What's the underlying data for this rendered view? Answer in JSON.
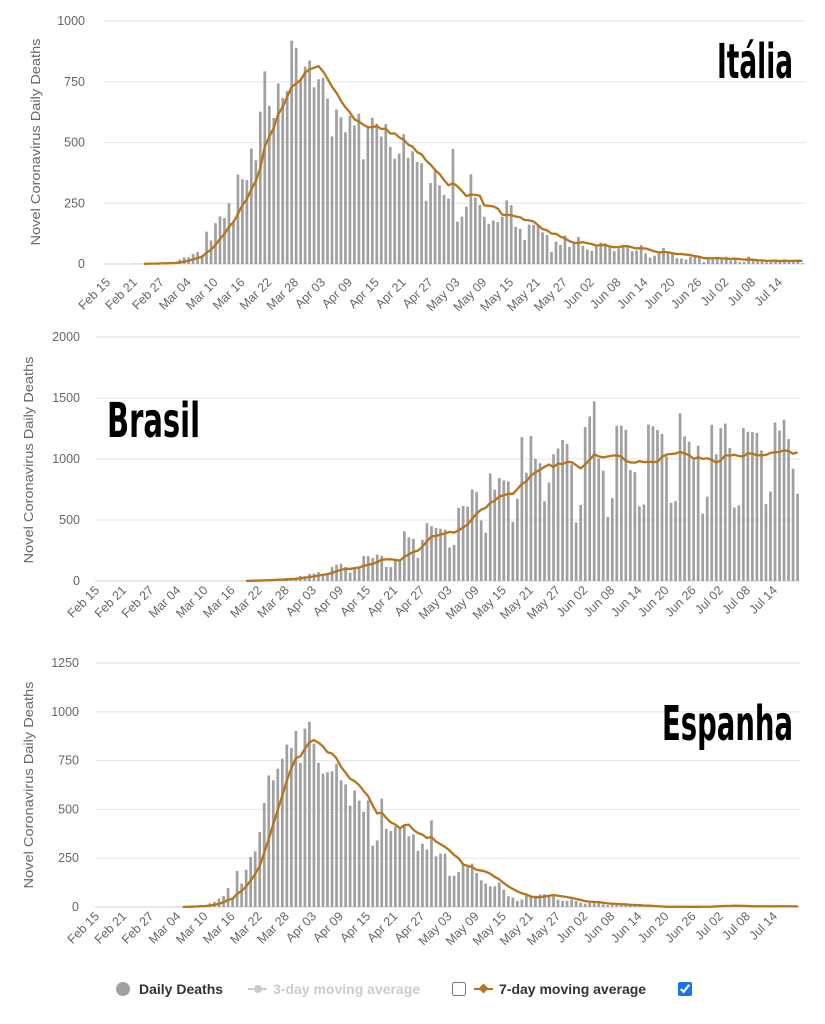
{
  "chart_data": [
    {
      "type": "bar",
      "title": "Itália",
      "xlabel": "",
      "ylabel": "Novel Coronavirus Daily Deaths",
      "ylim": [
        0,
        1000
      ],
      "y_ticks": [
        0,
        250,
        500,
        750,
        1000
      ],
      "grid": true,
      "x_start": "Feb 15",
      "x_tick_labels": [
        "Feb 15",
        "Feb 21",
        "Feb 27",
        "Mar 04",
        "Mar 10",
        "Mar 16",
        "Mar 22",
        "Mar 28",
        "Apr 03",
        "Apr 09",
        "Apr 15",
        "Apr 21",
        "Apr 27",
        "May 03",
        "May 09",
        "May 15",
        "May 21",
        "May 27",
        "Jun 02",
        "Jun 08",
        "Jun 14",
        "Jun 20",
        "Jun 26",
        "Jul 02",
        "Jul 08",
        "Jul 14"
      ],
      "colors": {
        "bar": "#a0a0a0",
        "line": "#b8741a",
        "grid": "#e6e6e6",
        "axis": "#ccd6eb"
      },
      "series": [
        {
          "name": "Daily Deaths",
          "type": "bar",
          "values": [
            0,
            0,
            0,
            0,
            0,
            0,
            1,
            1,
            1,
            4,
            3,
            2,
            5,
            4,
            8,
            5,
            18,
            27,
            28,
            41,
            49,
            36,
            133,
            97,
            168,
            196,
            189,
            250,
            175,
            368,
            349,
            345,
            475,
            427,
            627,
            793,
            651,
            601,
            743,
            683,
            712,
            919,
            889,
            756,
            812,
            837,
            727,
            760,
            766,
            681,
            525,
            636,
            604,
            542,
            610,
            570,
            619,
            431,
            566,
            602,
            578,
            525,
            575,
            482,
            433,
            454,
            534,
            437,
            464,
            420,
            415,
            260,
            333,
            382,
            323,
            285,
            269,
            474,
            174,
            195,
            236,
            369,
            274,
            243,
            194,
            165,
            179,
            172,
            195,
            262,
            242,
            153,
            145,
            99,
            162,
            161,
            156,
            130,
            119,
            50,
            92,
            78,
            117,
            70,
            87,
            111,
            75,
            60,
            55,
            71,
            88,
            85,
            72,
            53,
            65,
            79,
            71,
            53,
            56,
            78,
            44,
            26,
            34,
            43,
            66,
            47,
            49,
            24,
            23,
            18,
            30,
            34,
            30,
            8,
            24,
            22,
            23,
            21,
            30,
            15,
            21,
            7,
            8,
            30,
            15,
            12,
            12,
            7,
            9,
            13,
            17,
            20,
            11,
            13,
            13,
            3
          ]
        },
        {
          "name": "7-day moving average",
          "type": "line",
          "derived_from": "Daily Deaths",
          "window_days": 7
        }
      ]
    },
    {
      "type": "bar",
      "title": "Brasil",
      "xlabel": "",
      "ylabel": "Novel Coronavirus Daily Deaths",
      "ylim": [
        0,
        2000
      ],
      "y_ticks": [
        0,
        500,
        1000,
        1500,
        2000
      ],
      "grid": true,
      "x_start": "Feb 15",
      "x_tick_labels": [
        "Feb 15",
        "Feb 21",
        "Feb 27",
        "Mar 04",
        "Mar 10",
        "Mar 16",
        "Mar 22",
        "Mar 28",
        "Apr 03",
        "Apr 09",
        "Apr 15",
        "Apr 21",
        "Apr 27",
        "May 03",
        "May 09",
        "May 15",
        "May 21",
        "May 27",
        "Jun 02",
        "Jun 08",
        "Jun 14",
        "Jun 20",
        "Jun 26",
        "Jul 02",
        "Jul 08",
        "Jul 14"
      ],
      "colors": {
        "bar": "#a0a0a0",
        "line": "#b8741a",
        "grid": "#e6e6e6",
        "axis": "#ccd6eb"
      },
      "series": [
        {
          "name": "Daily Deaths",
          "type": "bar",
          "values": [
            0,
            0,
            0,
            0,
            0,
            0,
            0,
            0,
            0,
            0,
            0,
            0,
            0,
            0,
            0,
            0,
            0,
            0,
            0,
            0,
            0,
            0,
            0,
            0,
            0,
            0,
            0,
            0,
            0,
            0,
            0,
            1,
            3,
            3,
            4,
            7,
            7,
            9,
            12,
            11,
            20,
            15,
            22,
            22,
            23,
            42,
            40,
            58,
            60,
            73,
            54,
            67,
            114,
            133,
            141,
            115,
            68,
            99,
            105,
            204,
            204,
            188,
            217,
            206,
            115,
            113,
            166,
            165,
            407,
            357,
            346,
            189,
            338,
            474,
            449,
            435,
            428,
            421,
            275,
            296,
            600,
            615,
            610,
            751,
            730,
            496,
            396,
            881,
            749,
            844,
            824,
            816,
            485,
            674,
            1179,
            888,
            1188,
            1001,
            965,
            653,
            807,
            1039,
            1086,
            1156,
            1124,
            956,
            480,
            623,
            1262,
            1349,
            1473,
            1005,
            904,
            525,
            679,
            1272,
            1274,
            1239,
            909,
            892,
            612,
            627,
            1282,
            1269,
            1238,
            1206,
            1022,
            641,
            654,
            1374,
            1185,
            1141,
            990,
            1109,
            552,
            692,
            1280,
            1038,
            1252,
            1290,
            1091,
            602,
            620,
            1254,
            1223,
            1220,
            1214,
            1071,
            631,
            733,
            1300,
            1233,
            1322,
            1163,
            921,
            716
          ]
        },
        {
          "name": "7-day moving average",
          "type": "line",
          "derived_from": "Daily Deaths",
          "window_days": 7
        }
      ]
    },
    {
      "type": "bar",
      "title": "Espanha",
      "xlabel": "",
      "ylabel": "Novel Coronavirus Daily Deaths",
      "ylim": [
        0,
        1250
      ],
      "y_ticks": [
        0,
        250,
        500,
        750,
        1000,
        1250
      ],
      "grid": true,
      "x_start": "Feb 15",
      "x_tick_labels": [
        "Feb 15",
        "Feb 21",
        "Feb 27",
        "Mar 04",
        "Mar 10",
        "Mar 16",
        "Mar 22",
        "Mar 28",
        "Apr 03",
        "Apr 09",
        "Apr 15",
        "Apr 21",
        "Apr 27",
        "May 03",
        "May 09",
        "May 15",
        "May 21",
        "May 27",
        "Jun 02",
        "Jun 08",
        "Jun 14",
        "Jun 20",
        "Jun 26",
        "Jul 02",
        "Jul 08",
        "Jul 14"
      ],
      "colors": {
        "bar": "#a0a0a0",
        "line": "#b8741a",
        "grid": "#e6e6e6",
        "axis": "#ccd6eb"
      },
      "series": [
        {
          "name": "Daily Deaths",
          "type": "bar",
          "values": [
            0,
            0,
            0,
            0,
            0,
            0,
            0,
            0,
            0,
            0,
            0,
            0,
            0,
            0,
            0,
            0,
            0,
            1,
            1,
            1,
            3,
            5,
            7,
            11,
            7,
            19,
            26,
            43,
            56,
            97,
            48,
            184,
            120,
            191,
            256,
            285,
            384,
            533,
            674,
            649,
            709,
            760,
            832,
            815,
            902,
            738,
            914,
            948,
            837,
            738,
            683,
            690,
            695,
            734,
            649,
            628,
            519,
            598,
            545,
            488,
            546,
            314,
            341,
            555,
            401,
            389,
            413,
            410,
            423,
            362,
            372,
            288,
            324,
            295,
            444,
            260,
            273,
            273,
            160,
            160,
            179,
            222,
            213,
            222,
            174,
            137,
            120,
            106,
            106,
            125,
            89,
            55,
            48,
            31,
            38,
            62,
            55,
            58,
            64,
            66,
            60,
            64,
            38,
            31,
            31,
            38,
            31,
            22,
            17,
            22,
            20,
            26,
            14,
            10,
            10,
            10,
            10,
            14,
            10,
            8,
            3,
            0,
            4,
            2,
            1,
            0,
            0,
            0,
            2,
            3,
            0,
            1,
            0,
            0,
            2,
            3,
            6,
            8,
            10,
            7,
            5,
            3,
            4,
            2,
            3,
            3,
            5,
            4,
            3,
            2,
            4,
            3,
            5,
            4,
            2,
            4
          ]
        },
        {
          "name": "7-day moving average",
          "type": "line",
          "derived_from": "Daily Deaths",
          "window_days": 7
        }
      ]
    }
  ],
  "legend": {
    "items": [
      {
        "label": "Daily Deaths",
        "marker": "circle-icon",
        "color": "#a0a0a0",
        "active": true
      },
      {
        "label": "3-day moving average",
        "marker": "line-circle-icon",
        "color": "#cccccc",
        "active": false,
        "checkbox_checked": false
      },
      {
        "label": "7-day moving average",
        "marker": "line-diamond-icon",
        "color": "#b8741a",
        "active": true,
        "checkbox_checked": true
      }
    ]
  }
}
